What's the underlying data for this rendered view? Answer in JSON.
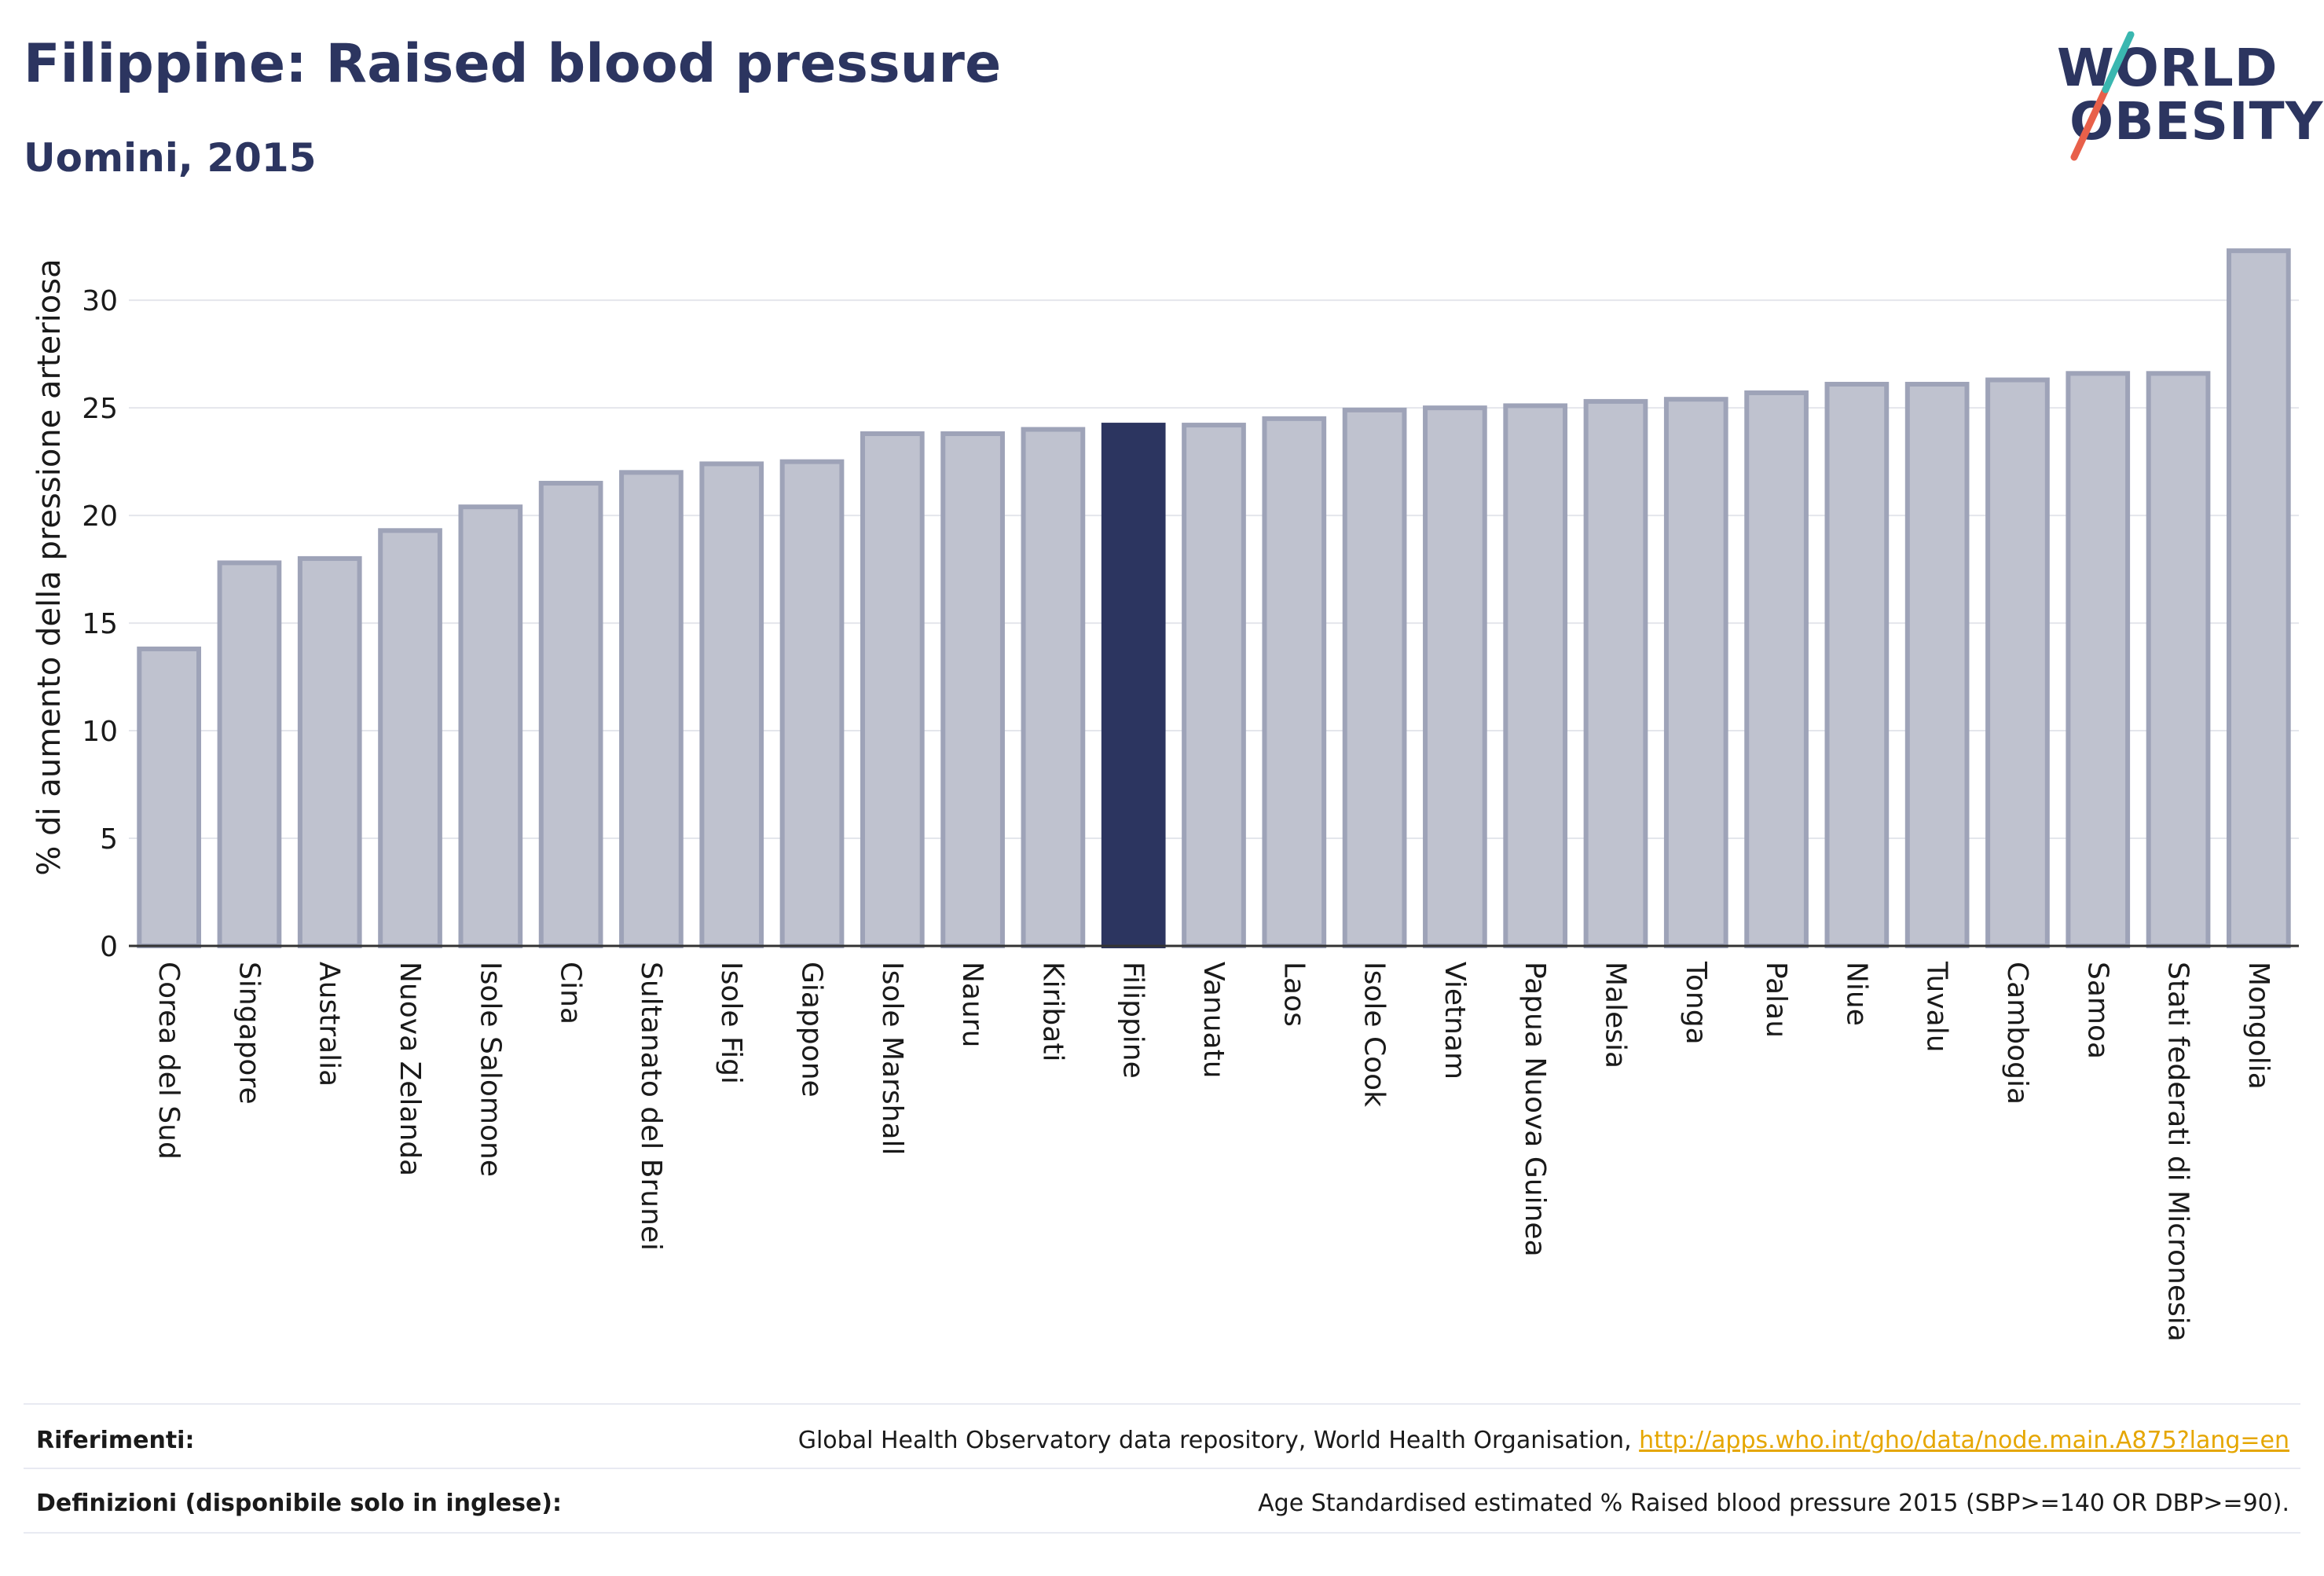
{
  "header": {
    "title": "Filippine: Raised blood pressure",
    "subtitle": "Uomini, 2015"
  },
  "logo": {
    "line1": "WORLD",
    "line2": "OBESITY",
    "colors": {
      "text": "#2c3560",
      "slash_teal": "#3ab7b0",
      "slash_red": "#e8604a"
    }
  },
  "colors": {
    "bar": "#bfc2cf",
    "bar_edge": "#9ea3b8",
    "highlight": "#2c3560",
    "link": "#e5a600"
  },
  "chart_data": {
    "type": "bar",
    "ylabel": "% di aumento della pressione arteriosa",
    "ylim": [
      0,
      33
    ],
    "yticks": [
      0,
      5,
      10,
      15,
      20,
      25,
      30
    ],
    "grid": true,
    "highlight": "Filippine",
    "categories": [
      "Corea del Sud",
      "Singapore",
      "Australia",
      "Nuova Zelanda",
      "Isole Salomone",
      "Cina",
      "Sultanato del Brunei",
      "Isole Figi",
      "Giappone",
      "Isole Marshall",
      "Nauru",
      "Kiribati",
      "Filippine",
      "Vanuatu",
      "Laos",
      "Isole Cook",
      "Vietnam",
      "Papua Nuova Guinea",
      "Malesia",
      "Tonga",
      "Palau",
      "Niue",
      "Tuvalu",
      "Cambogia",
      "Samoa",
      "Stati federati di Micronesia",
      "Mongolia"
    ],
    "values": [
      13.8,
      17.8,
      18.0,
      19.3,
      20.4,
      21.5,
      22.0,
      22.4,
      22.5,
      23.8,
      23.8,
      24.0,
      24.2,
      24.2,
      24.5,
      24.9,
      25.0,
      25.1,
      25.3,
      25.4,
      25.7,
      26.1,
      26.1,
      26.3,
      26.6,
      26.6,
      32.3
    ]
  },
  "footer": {
    "ref_label": "Riferimenti:",
    "ref_text": "Global Health Observatory data repository, World Health Organisation, ",
    "ref_link": "http://apps.who.int/gho/data/node.main.A875?lang=en",
    "def_label": "Definizioni (disponibile solo in inglese):",
    "def_text": "Age Standardised estimated % Raised blood pressure 2015 (SBP>=140 OR DBP>=90)."
  }
}
